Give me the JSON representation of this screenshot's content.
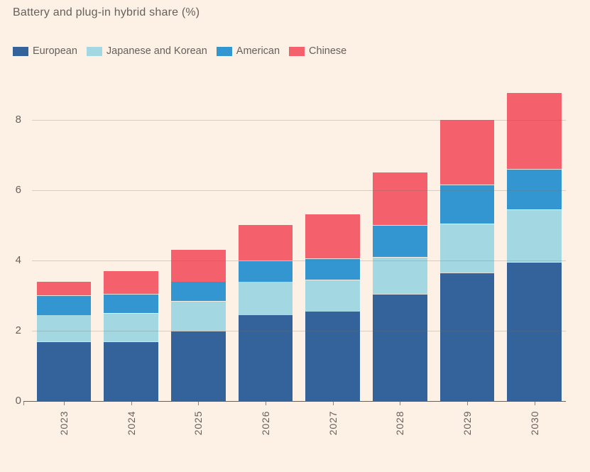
{
  "header": {
    "title": "Battery and plug-in hybrid share (%)"
  },
  "chart_data": {
    "type": "bar",
    "variant": "stacked-vertical",
    "title": "Battery and plug-in hybrid share (%)",
    "categories": [
      "2023",
      "2024",
      "2025",
      "2026",
      "2027",
      "2028",
      "2029",
      "2030"
    ],
    "series": [
      {
        "name": "European",
        "color": "#33639a",
        "values": [
          1.7,
          1.7,
          2.0,
          2.45,
          2.55,
          3.05,
          3.65,
          3.95
        ]
      },
      {
        "name": "Japanese and Korean",
        "color": "#a3d8e3",
        "values": [
          0.75,
          0.8,
          0.85,
          0.95,
          0.9,
          1.05,
          1.4,
          1.5
        ]
      },
      {
        "name": "American",
        "color": "#3496d0",
        "values": [
          0.55,
          0.55,
          0.55,
          0.6,
          0.6,
          0.9,
          1.1,
          1.15
        ]
      },
      {
        "name": "Chinese",
        "color": "#f4606c",
        "values": [
          0.4,
          0.65,
          0.9,
          1.0,
          1.25,
          1.5,
          1.85,
          2.15
        ]
      }
    ],
    "stack_totals": [
      3.4,
      3.7,
      4.3,
      5.0,
      5.3,
      6.5,
      8.0,
      8.75
    ],
    "xlabel": "",
    "ylabel": "",
    "y_ticks": [
      0,
      2,
      4,
      6,
      8
    ],
    "ylim": [
      0,
      9
    ],
    "grid": "horizontal",
    "legend_position": "top-left",
    "x_label_rotation_deg": -90
  },
  "style_tokens": {
    "background": "#fdf1e5",
    "text_color": "#66605c",
    "gridline_color": "#d9cfc5",
    "axis_color": "#66605c"
  }
}
